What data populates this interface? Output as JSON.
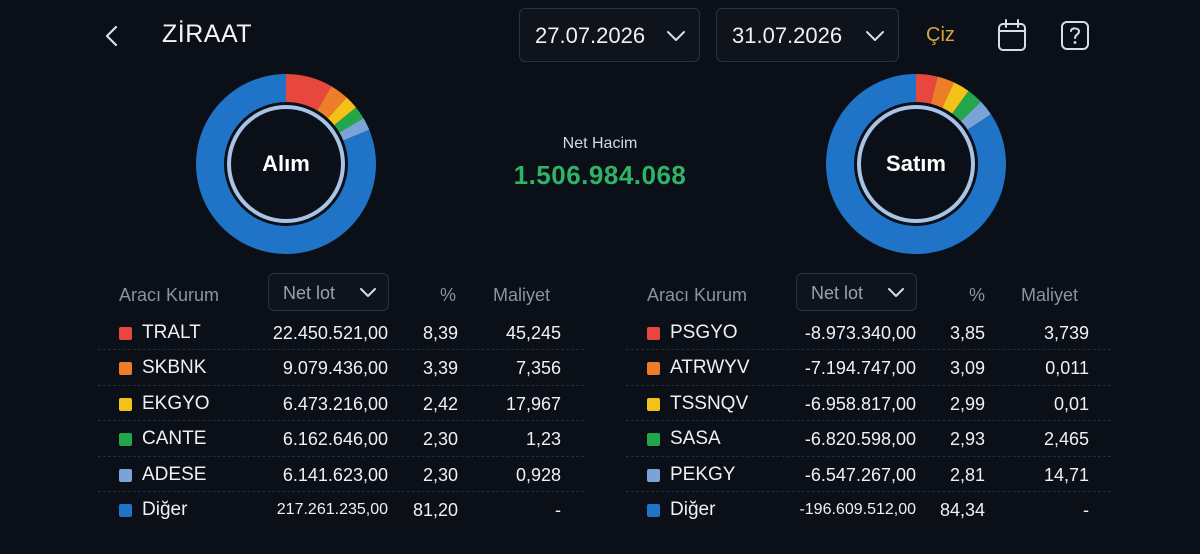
{
  "header": {
    "title": "ZİRAAT",
    "start_date": "27.07.2026",
    "end_date": "31.07.2026",
    "draw_label": "Çiz",
    "back_icon": "chevron-left-icon",
    "calendar_icon": "calendar-icon",
    "help_icon": "help-icon"
  },
  "summary": {
    "net_volume_label": "Net Hacim",
    "net_volume_value": "1.506.984.068",
    "net_volume_color": "#2fb466"
  },
  "colors": [
    "#e8473d",
    "#ee7d2a",
    "#f2c218",
    "#22a84a",
    "#7aa3d6",
    "#1f74c8"
  ],
  "buy": {
    "donut_label": "Alım",
    "headers": {
      "broker": "Aracı Kurum",
      "sort": "Net lot",
      "pct": "%",
      "cost": "Maliyet"
    },
    "rows": [
      {
        "code": "TRALT",
        "lot": "22.450.521,00",
        "pct": "8,39",
        "cost": "45,245",
        "share": 8.39
      },
      {
        "code": "SKBNK",
        "lot": "9.079.436,00",
        "pct": "3,39",
        "cost": "7,356",
        "share": 3.39
      },
      {
        "code": "EKGYO",
        "lot": "6.473.216,00",
        "pct": "2,42",
        "cost": "17,967",
        "share": 2.42
      },
      {
        "code": "CANTE",
        "lot": "6.162.646,00",
        "pct": "2,30",
        "cost": "1,23",
        "share": 2.3
      },
      {
        "code": "ADESE",
        "lot": "6.141.623,00",
        "pct": "2,30",
        "cost": "0,928",
        "share": 2.3
      },
      {
        "code": "Diğer",
        "lot": "217.261.235,00",
        "pct": "81,20",
        "cost": "-",
        "share": 81.2
      }
    ]
  },
  "sell": {
    "donut_label": "Satım",
    "headers": {
      "broker": "Aracı Kurum",
      "sort": "Net lot",
      "pct": "%",
      "cost": "Maliyet"
    },
    "rows": [
      {
        "code": "PSGYO",
        "lot": "-8.973.340,00",
        "pct": "3,85",
        "cost": "3,739",
        "share": 3.85
      },
      {
        "code": "ATRWYV",
        "lot": "-7.194.747,00",
        "pct": "3,09",
        "cost": "0,011",
        "share": 3.09
      },
      {
        "code": "TSSNQV",
        "lot": "-6.958.817,00",
        "pct": "2,99",
        "cost": "0,01",
        "share": 2.99
      },
      {
        "code": "SASA",
        "lot": "-6.820.598,00",
        "pct": "2,93",
        "cost": "2,465",
        "share": 2.93
      },
      {
        "code": "PEKGY",
        "lot": "-6.547.267,00",
        "pct": "2,81",
        "cost": "14,71",
        "share": 2.81
      },
      {
        "code": "Diğer",
        "lot": "-196.609.512,00",
        "pct": "84,34",
        "cost": "-",
        "share": 84.34
      }
    ]
  }
}
